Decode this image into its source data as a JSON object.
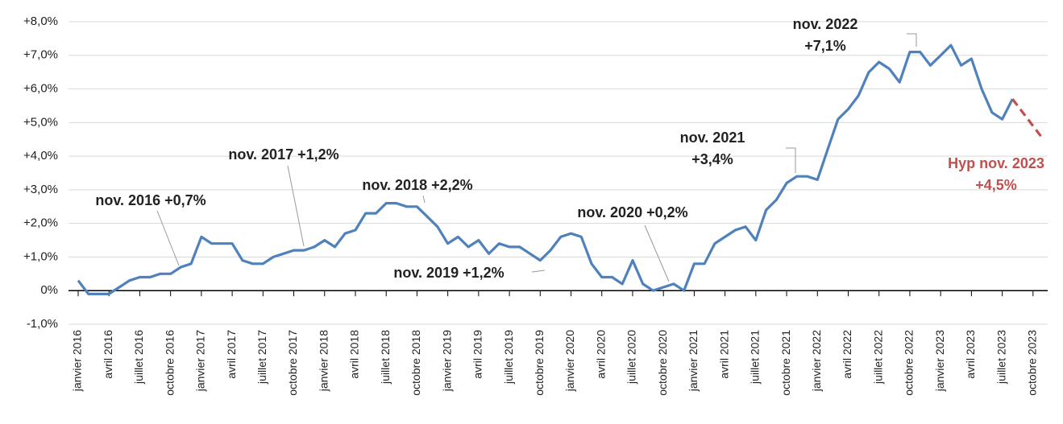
{
  "chart_data": {
    "type": "line",
    "categories": [
      "janvier 2016",
      null,
      null,
      "avril 2016",
      null,
      null,
      "juillet 2016",
      null,
      null,
      "octobre 2016",
      null,
      null,
      "janvier 2017",
      null,
      null,
      "avril 2017",
      null,
      null,
      "juillet 2017",
      null,
      null,
      "octobre 2017",
      null,
      null,
      "janvier 2018",
      null,
      null,
      "avril 2018",
      null,
      null,
      "juillet 2018",
      null,
      null,
      "octobre 2018",
      null,
      null,
      "janvier 2019",
      null,
      null,
      "avril 2019",
      null,
      null,
      "juillet 2019",
      null,
      null,
      "octobre 2019",
      null,
      null,
      "janvier 2020",
      null,
      null,
      "avril 2020",
      null,
      null,
      "juillet 2020",
      null,
      null,
      "octobre 2020",
      null,
      null,
      "janvier 2021",
      null,
      null,
      "avril 2021",
      null,
      null,
      "juillet 2021",
      null,
      null,
      "octobre 2021",
      null,
      null,
      "janvier 2022",
      null,
      null,
      "avril 2022",
      null,
      null,
      "juillet 2022",
      null,
      null,
      "octobre 2022",
      null,
      null,
      "janvier 2023",
      null,
      null,
      "avril 2023",
      null,
      null,
      "juillet 2023",
      null,
      null,
      "octobre 2023",
      null
    ],
    "series": [
      {
        "color": "#4f81bd",
        "dashed": false,
        "values": [
          0.3,
          -0.1,
          -0.1,
          -0.1,
          0.1,
          0.3,
          0.4,
          0.4,
          0.5,
          0.5,
          0.7,
          0.8,
          1.6,
          1.4,
          1.4,
          1.4,
          0.9,
          0.8,
          0.8,
          1.0,
          1.1,
          1.2,
          1.2,
          1.3,
          1.5,
          1.3,
          1.7,
          1.8,
          2.3,
          2.3,
          2.6,
          2.6,
          2.5,
          2.5,
          2.2,
          1.9,
          1.4,
          1.6,
          1.3,
          1.5,
          1.1,
          1.4,
          1.3,
          1.3,
          1.1,
          0.9,
          1.2,
          1.6,
          1.7,
          1.6,
          0.8,
          0.4,
          0.4,
          0.2,
          0.9,
          0.2,
          0.0,
          0.1,
          0.2,
          0.0,
          0.8,
          0.8,
          1.4,
          1.6,
          1.8,
          1.9,
          1.5,
          2.4,
          2.7,
          3.2,
          3.4,
          3.4,
          3.3,
          4.2,
          5.1,
          5.4,
          5.8,
          6.5,
          6.8,
          6.6,
          6.2,
          7.1,
          7.1,
          6.7,
          7.0,
          7.3,
          6.7,
          6.9,
          6.0,
          5.3,
          5.1,
          5.7,
          null,
          null,
          null
        ]
      },
      {
        "color": "#c0504d",
        "dashed": true,
        "values": [
          null,
          null,
          null,
          null,
          null,
          null,
          null,
          null,
          null,
          null,
          null,
          null,
          null,
          null,
          null,
          null,
          null,
          null,
          null,
          null,
          null,
          null,
          null,
          null,
          null,
          null,
          null,
          null,
          null,
          null,
          null,
          null,
          null,
          null,
          null,
          null,
          null,
          null,
          null,
          null,
          null,
          null,
          null,
          null,
          null,
          null,
          null,
          null,
          null,
          null,
          null,
          null,
          null,
          null,
          null,
          null,
          null,
          null,
          null,
          null,
          null,
          null,
          null,
          null,
          null,
          null,
          null,
          null,
          null,
          null,
          null,
          null,
          null,
          null,
          null,
          null,
          null,
          null,
          null,
          null,
          null,
          null,
          null,
          null,
          null,
          null,
          null,
          null,
          null,
          null,
          null,
          5.7,
          5.3,
          4.9,
          4.5
        ]
      }
    ],
    "ylim": [
      -1,
      8
    ],
    "yticks": [
      {
        "value": -1,
        "label": "-1,0%"
      },
      {
        "value": 0,
        "label": "0%"
      },
      {
        "value": 1,
        "label": "+1,0%"
      },
      {
        "value": 2,
        "label": "+2,0%"
      },
      {
        "value": 3,
        "label": "+3,0%"
      },
      {
        "value": 4,
        "label": "+4,0%"
      },
      {
        "value": 5,
        "label": "+5,0%"
      },
      {
        "value": 6,
        "label": "+6,0%"
      },
      {
        "value": 7,
        "label": "+7,0%"
      },
      {
        "value": 8,
        "label": "+8,0%"
      }
    ],
    "grid": true,
    "annotations": [
      {
        "lines": [
          "nov. 2016 +0,7%"
        ]
      },
      {
        "lines": [
          "nov. 2017 +1,2%"
        ]
      },
      {
        "lines": [
          "nov. 2018 +2,2%"
        ]
      },
      {
        "lines": [
          "nov. 2019 +1,2%"
        ]
      },
      {
        "lines": [
          "nov. 2020 +0,2%"
        ]
      },
      {
        "lines": [
          "nov. 2021",
          "+3,4%"
        ]
      },
      {
        "lines": [
          "nov. 2022",
          "+7,1%"
        ]
      },
      {
        "lines": [
          "Hyp nov. 2023",
          "+4,5%"
        ],
        "color": "#c0504d"
      }
    ]
  }
}
